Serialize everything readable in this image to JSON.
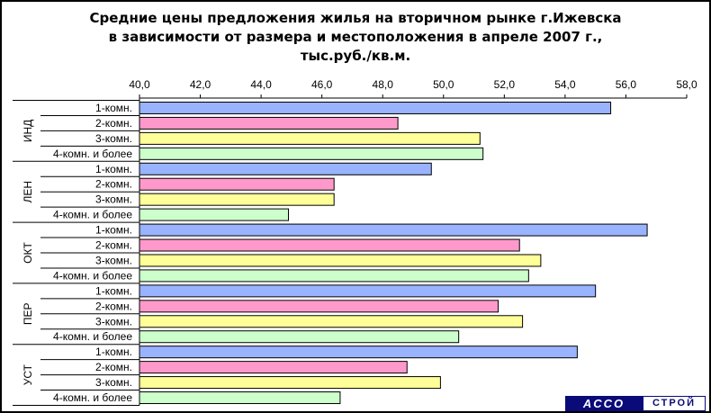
{
  "title_lines": [
    "Средние цены предложения жилья на вторичном рынке г.Ижевска",
    "в зависимости от размера и местоположения в апреле 2007 г.,",
    "тыс.руб./кв.м."
  ],
  "logo": {
    "part1": "ACCO",
    "part2": "СТРОЙ"
  },
  "chart_data": {
    "type": "bar",
    "orientation": "horizontal",
    "title": "Средние цены предложения жилья на вторичном рынке г.Ижевска в зависимости от размера и местоположения в апреле 2007 г., тыс.руб./кв.м.",
    "xlim": [
      40,
      58
    ],
    "x_ticks": [
      "40,0",
      "42,0",
      "44,0",
      "46,0",
      "48,0",
      "50,0",
      "52,0",
      "54,0",
      "56,0",
      "58,0"
    ],
    "axis_position": "top",
    "grid": false,
    "series_colors": [
      "#99b3ff",
      "#ff99cc",
      "#ffff99",
      "#ccffcc"
    ],
    "groups": [
      {
        "label": "ИНД",
        "items": [
          {
            "label": "1-комн.",
            "value": 55.5
          },
          {
            "label": "2-комн.",
            "value": 48.5
          },
          {
            "label": "3-комн.",
            "value": 51.2
          },
          {
            "label": "4-комн. и более",
            "value": 51.3
          }
        ]
      },
      {
        "label": "ЛЕН",
        "items": [
          {
            "label": "1-комн.",
            "value": 49.6
          },
          {
            "label": "2-комн.",
            "value": 46.4
          },
          {
            "label": "3-комн.",
            "value": 46.4
          },
          {
            "label": "4-комн. и более",
            "value": 44.9
          }
        ]
      },
      {
        "label": "ОКТ",
        "items": [
          {
            "label": "1-комн.",
            "value": 56.7
          },
          {
            "label": "2-комн.",
            "value": 52.5
          },
          {
            "label": "3-комн.",
            "value": 53.2
          },
          {
            "label": "4-комн. и более",
            "value": 52.8
          }
        ]
      },
      {
        "label": "ПЕР",
        "items": [
          {
            "label": "1-комн.",
            "value": 55.0
          },
          {
            "label": "2-комн.",
            "value": 51.8
          },
          {
            "label": "3-комн.",
            "value": 52.6
          },
          {
            "label": "4-комн. и более",
            "value": 50.5
          }
        ]
      },
      {
        "label": "УСТ",
        "items": [
          {
            "label": "1-комн.",
            "value": 54.4
          },
          {
            "label": "2-комн.",
            "value": 48.8
          },
          {
            "label": "3-комн.",
            "value": 49.9
          },
          {
            "label": "4-комн. и более",
            "value": 46.6
          }
        ]
      }
    ]
  }
}
